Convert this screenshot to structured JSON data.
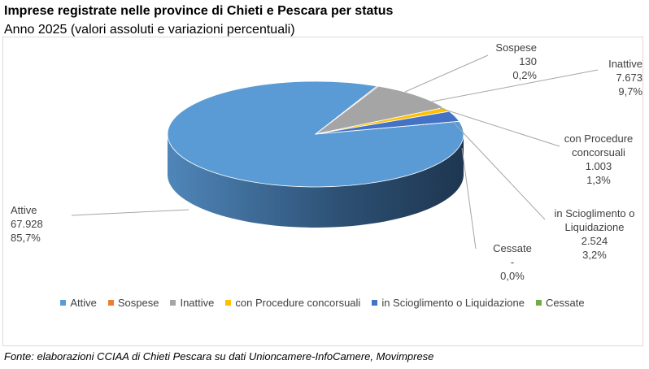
{
  "chart_data": {
    "type": "pie",
    "title": "Imprese registrate nelle province di Chieti e Pescara per status",
    "subtitle": "Anno 2025 (valori assoluti e variazioni percentuali)",
    "categories": [
      "Attive",
      "Sospese",
      "Inattive",
      "con Procedure concorsuali",
      "in Scioglimento o Liquidazione",
      "Cessate"
    ],
    "values": [
      67928,
      130,
      7673,
      1003,
      2524,
      0
    ],
    "value_labels": [
      "67.928",
      "130",
      "7.673",
      "1.003",
      "2.524",
      "-"
    ],
    "percent": [
      85.7,
      0.2,
      9.7,
      1.3,
      3.2,
      0.0
    ],
    "percent_labels": [
      "85,7%",
      "0,2%",
      "9,7%",
      "1,3%",
      "3,2%",
      "0,0%"
    ],
    "colors": [
      "#5b9bd5",
      "#ed7d31",
      "#a5a5a5",
      "#ffc000",
      "#4472c4",
      "#70ad47"
    ],
    "legend": "bottom",
    "note": "Fonte: elaborazioni CCIAA di Chieti Pescara su dati Unioncamere-InfoCamere, Movimprese"
  }
}
